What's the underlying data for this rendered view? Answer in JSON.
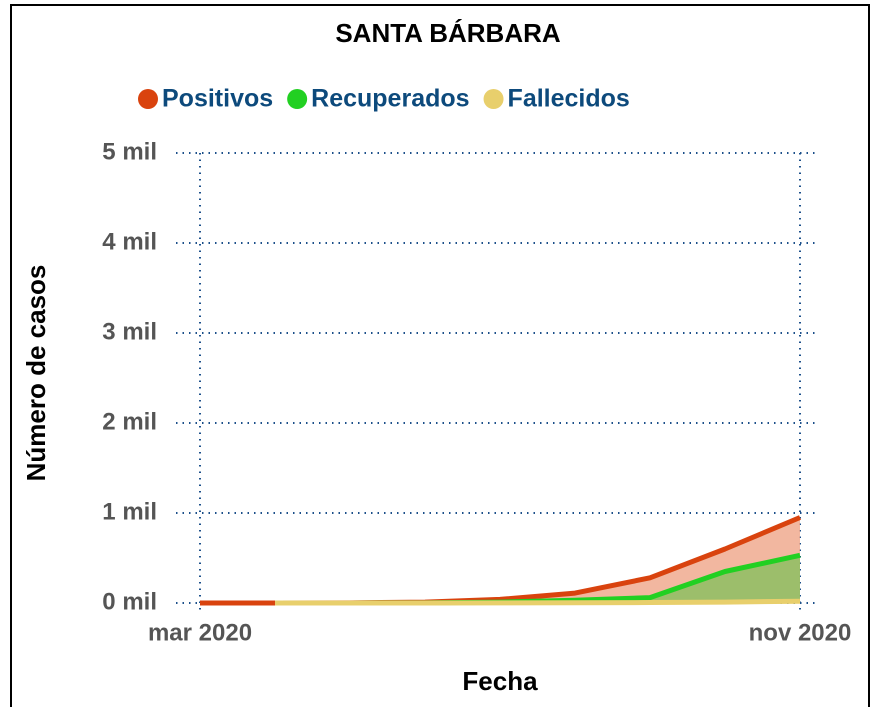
{
  "chart_data": {
    "type": "area",
    "title": "SANTA BÁRBARA",
    "x_label": "Fecha",
    "y_label": "Número de casos",
    "x": [
      "2020-03",
      "2020-04",
      "2020-05",
      "2020-06",
      "2020-07",
      "2020-08",
      "2020-09",
      "2020-10",
      "2020-11"
    ],
    "series": [
      {
        "name": "Positivos",
        "color": "#d9430e",
        "fill": "#f0aa8f",
        "values": [
          0,
          0,
          2,
          10,
          40,
          110,
          280,
          600,
          950
        ]
      },
      {
        "name": "Recuperados",
        "color": "#22d022",
        "fill": "#8dbf62",
        "values": [
          null,
          0,
          0,
          2,
          10,
          30,
          60,
          350,
          530
        ]
      },
      {
        "name": "Fallecidos",
        "color": "#e8cf6c",
        "fill": null,
        "values": [
          null,
          0,
          0,
          0,
          1,
          3,
          5,
          10,
          20
        ]
      }
    ],
    "xticks": [
      {
        "value": "2020-03",
        "label": "mar 2020"
      },
      {
        "value": "2020-11",
        "label": "nov 2020"
      }
    ],
    "ylim": [
      0,
      5000
    ],
    "yticks": [
      {
        "value": 0,
        "label": "0 mil"
      },
      {
        "value": 1000,
        "label": "1 mil"
      },
      {
        "value": 2000,
        "label": "2 mil"
      },
      {
        "value": 3000,
        "label": "3 mil"
      },
      {
        "value": 4000,
        "label": "4 mil"
      },
      {
        "value": 5000,
        "label": "5 mil"
      }
    ],
    "grid": true,
    "legend": "top"
  }
}
